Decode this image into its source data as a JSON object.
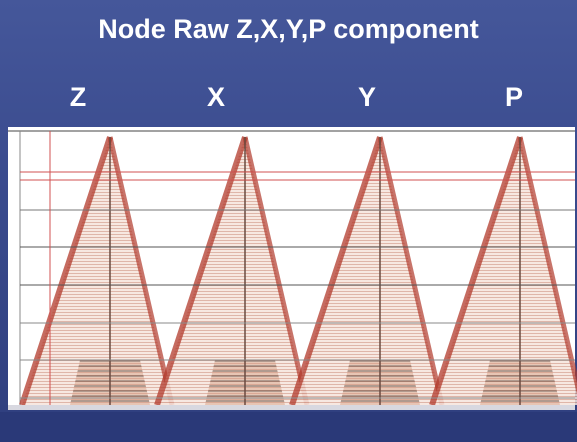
{
  "header": {
    "title": "Node Raw Z,X,Y,P component"
  },
  "panels": [
    {
      "label": "Z"
    },
    {
      "label": "X"
    },
    {
      "label": "Y"
    },
    {
      "label": "P"
    }
  ]
}
